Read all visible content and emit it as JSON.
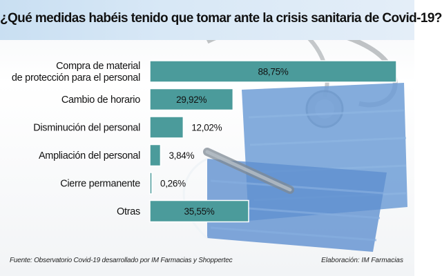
{
  "title": "¿Qué medidas habéis tenido que tomar ante la crisis sanitaria de Covid-19?",
  "footer": {
    "source": "Fuente: Observatorio Covid-19 desarrollado por IM Farmacias y Shoppertec",
    "credit": "Elaboración: IM Farmacias"
  },
  "colors": {
    "bar": "#4b9b9b",
    "bar_edge": "#ffffff",
    "title_band": "#cfe2f3"
  },
  "chart_data": {
    "type": "bar",
    "orientation": "horizontal",
    "categories": [
      [
        "Compra de material",
        "de protección para el personal"
      ],
      [
        "Cambio de horario"
      ],
      [
        "Disminución del personal"
      ],
      [
        "Ampliación del personal"
      ],
      [
        "Cierre permanente"
      ],
      [
        "Otras"
      ]
    ],
    "values": [
      88.75,
      29.92,
      12.02,
      3.84,
      0.26,
      35.55
    ],
    "value_labels": [
      "88,75%",
      "29,92%",
      "12,02%",
      "3,84%",
      "0,26%",
      "35,55%"
    ],
    "xlim": [
      0,
      100
    ],
    "grid": false,
    "legend": "none"
  }
}
